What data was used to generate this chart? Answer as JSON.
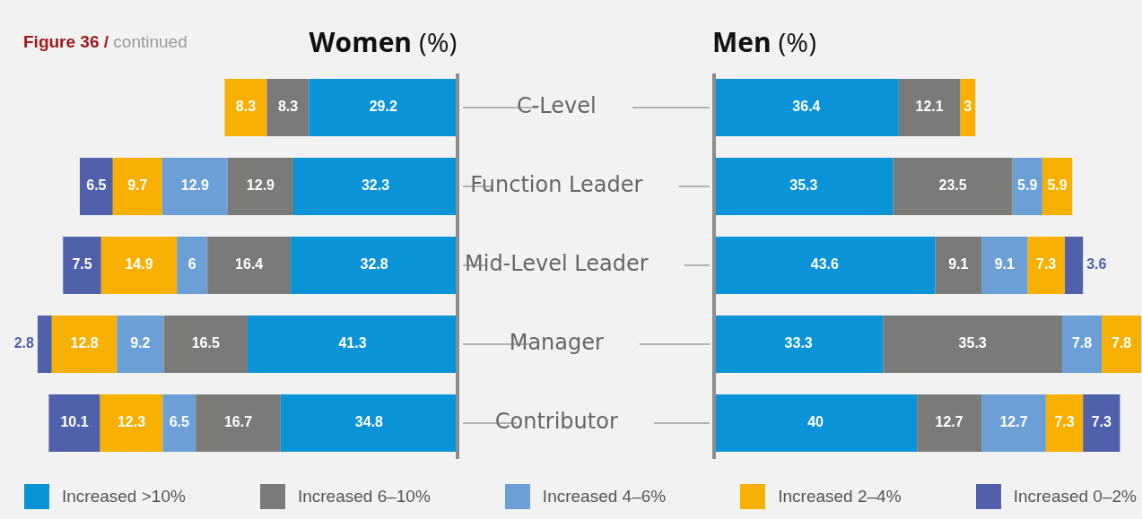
{
  "chart_data": [
    {
      "type": "bar",
      "title": "Women (%)",
      "annotations": [
        "Figure 36 / continued"
      ],
      "orientation": "horizontal",
      "stacked": true,
      "data_labels": true,
      "tick_labels": "y",
      "legend": "bottom",
      "categories": [
        "C-Level",
        "Function Leader",
        "Mid-Level Leader",
        "Manager",
        "Contributor"
      ],
      "series": [
        {
          "name": "Increased >10%",
          "color": "#0a93d6",
          "values": [
            29.2,
            32.3,
            32.8,
            41.3,
            34.8
          ]
        },
        {
          "name": "Increased 6–10%",
          "color": "#7a7b79",
          "values": [
            8.3,
            12.9,
            16.4,
            16.5,
            16.7
          ]
        },
        {
          "name": "Increased 4–6%",
          "color": "#6b9fd6",
          "values": [
            null,
            12.9,
            6,
            9.2,
            6.5
          ]
        },
        {
          "name": "Increased 2–4%",
          "color": "#f8b000",
          "values": [
            8.3,
            9.7,
            14.9,
            12.8,
            12.3
          ]
        },
        {
          "name": "Increased 0–2%",
          "color": "#5060aa",
          "values": [
            null,
            6.5,
            7.5,
            2.8,
            10.1
          ]
        }
      ]
    },
    {
      "type": "bar",
      "title": "Men (%)",
      "orientation": "horizontal",
      "stacked": true,
      "data_labels": true,
      "tick_labels": false,
      "series": [
        {
          "color": "#0a93d6",
          "values": [
            36.4,
            35.3,
            43.6,
            33.3,
            40
          ]
        },
        {
          "color": "#7a7b79",
          "values": [
            12.1,
            23.5,
            9.1,
            35.3,
            12.7
          ]
        },
        {
          "color": "#6b9fd6",
          "values": [
            null,
            5.9,
            9.1,
            7.8,
            12.7
          ]
        },
        {
          "color": "#f8b000",
          "values": [
            3,
            5.9,
            7.3,
            7.8,
            7.3
          ]
        },
        {
          "color": "#5060aa",
          "values": [
            null,
            null,
            3.6,
            null,
            7.3
          ]
        }
      ]
    }
  ]
}
